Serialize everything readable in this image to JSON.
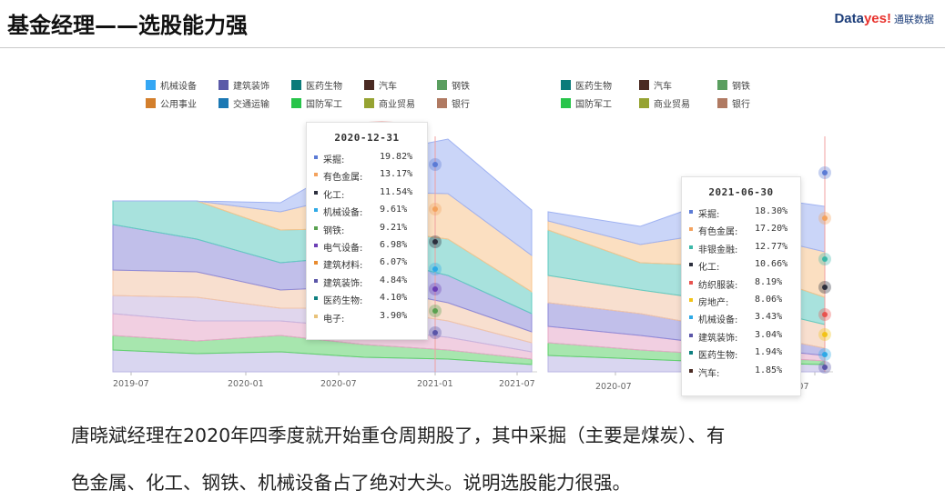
{
  "header": {
    "title": "基金经理——选股能力强",
    "brand_main": "Data",
    "brand_accent": "yes!",
    "brand_cn": "通联数据"
  },
  "chart_data": [
    {
      "type": "area",
      "tooltip": {
        "title": "2020-12-31",
        "items": [
          {
            "name": "采掘:",
            "value": "19.82%",
            "color": "#5b7bd5"
          },
          {
            "name": "有色金属:",
            "value": "13.17%",
            "color": "#f3a25e"
          },
          {
            "name": "化工:",
            "value": "11.54%",
            "color": "#2c2f3d"
          },
          {
            "name": "机械设备:",
            "value": "9.61%",
            "color": "#2ea9e6"
          },
          {
            "name": "钢铁:",
            "value": "9.21%",
            "color": "#59a14f"
          },
          {
            "name": "电气设备:",
            "value": "6.98%",
            "color": "#6c3fb5"
          },
          {
            "name": "建筑材料:",
            "value": "6.07%",
            "color": "#e88b2f"
          },
          {
            "name": "建筑装饰:",
            "value": "4.84%",
            "color": "#5a55a8"
          },
          {
            "name": "医药生物:",
            "value": "4.10%",
            "color": "#0d7f80"
          },
          {
            "name": "电子:",
            "value": "3.90%",
            "color": "#e8c27a"
          }
        ]
      },
      "legend": [
        {
          "name": "机械设备",
          "color": "#35a7f4"
        },
        {
          "name": "建筑装饰",
          "color": "#5b5aa8"
        },
        {
          "name": "医药生物",
          "color": "#0b7b7a"
        },
        {
          "name": "汽车",
          "color": "#4a2a22"
        },
        {
          "name": "钢铁",
          "color": "#5a9e5f"
        },
        {
          "name": "公用事业",
          "color": "#d37f2c"
        },
        {
          "name": "交通运输",
          "color": "#1b78b4"
        },
        {
          "name": "国防军工",
          "color": "#28c44a"
        },
        {
          "name": "商业贸易",
          "color": "#96a332"
        },
        {
          "name": "银行",
          "color": "#b07a62"
        }
      ],
      "x_ticks": [
        "2019-07",
        "2020-01",
        "2020-07",
        "2021-01",
        "2021-07"
      ]
    },
    {
      "type": "area",
      "tooltip": {
        "title": "2021-06-30",
        "items": [
          {
            "name": "采掘:",
            "value": "18.30%",
            "color": "#5b7bd5"
          },
          {
            "name": "有色金属:",
            "value": "17.20%",
            "color": "#f3a25e"
          },
          {
            "name": "非银金融:",
            "value": "12.77%",
            "color": "#3bb8a8"
          },
          {
            "name": "化工:",
            "value": "10.66%",
            "color": "#2c2f3d"
          },
          {
            "name": "纺织服装:",
            "value": "8.19%",
            "color": "#e8534f"
          },
          {
            "name": "房地产:",
            "value": "8.06%",
            "color": "#f2c316"
          },
          {
            "name": "机械设备:",
            "value": "3.43%",
            "color": "#2ea9e6"
          },
          {
            "name": "建筑装饰:",
            "value": "3.04%",
            "color": "#5a55a8"
          },
          {
            "name": "医药生物:",
            "value": "1.94%",
            "color": "#0d7f80"
          },
          {
            "name": "汽车:",
            "value": "1.85%",
            "color": "#4a2a22"
          }
        ]
      },
      "legend": [
        {
          "name": "医药生物",
          "color": "#0b7b7a"
        },
        {
          "name": "汽车",
          "color": "#4a2a22"
        },
        {
          "name": "钢铁",
          "color": "#5a9e5f"
        },
        {
          "name": "国防军工",
          "color": "#28c44a"
        },
        {
          "name": "商业贸易",
          "color": "#96a332"
        },
        {
          "name": "银行",
          "color": "#b07a62"
        }
      ],
      "x_ticks": [
        "2020-07",
        "-07"
      ]
    }
  ],
  "caption": {
    "line1": "唐晓斌经理在2020年四季度就开始重仓周期股了，其中采掘（主要是煤炭）、有",
    "line2": "色金属、化工、钢铁、机械设备占了绝对大头。说明选股能力很强。"
  }
}
